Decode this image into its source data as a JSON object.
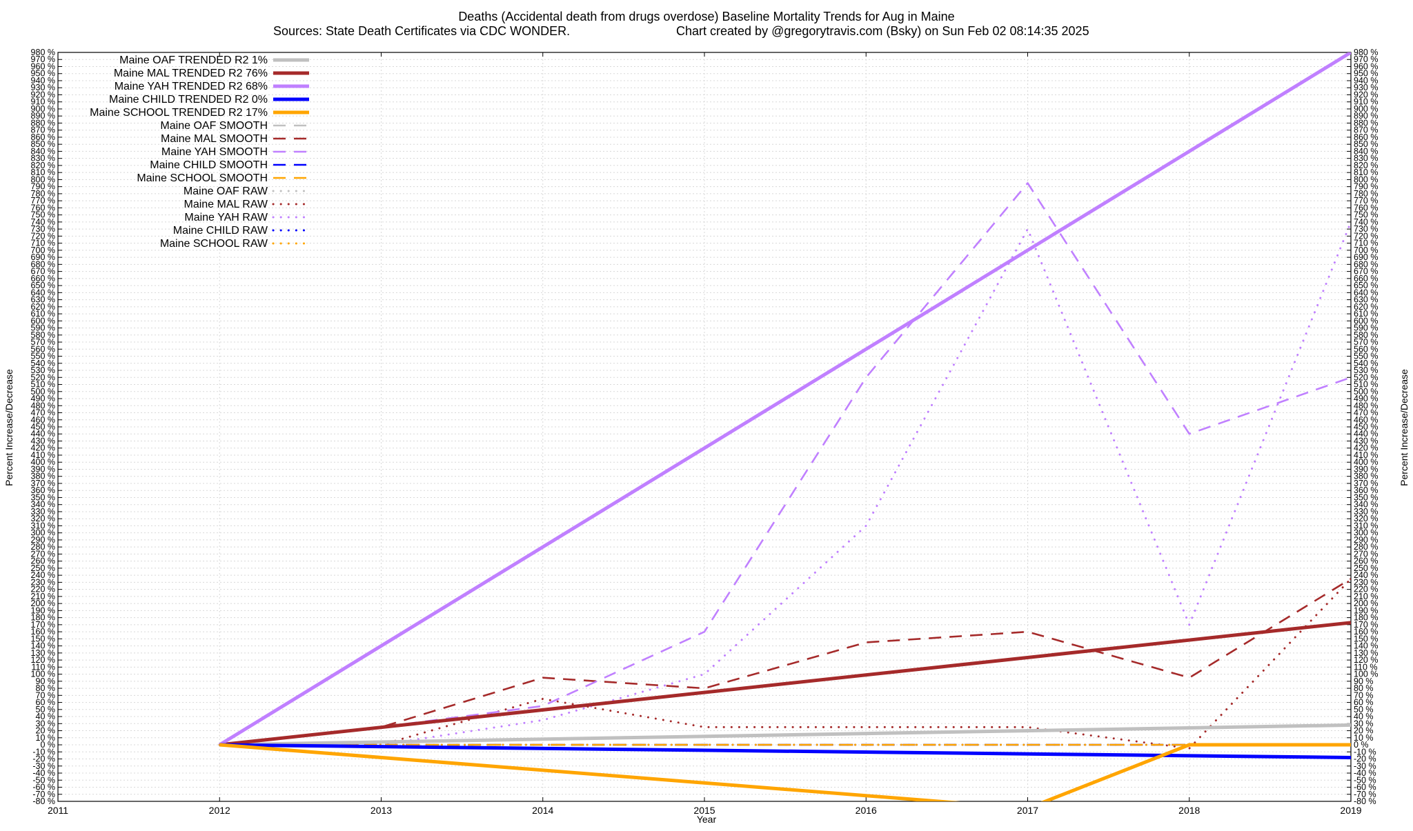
{
  "chart_data": {
    "type": "line",
    "title": "Deaths (Accidental death from drugs overdose)  Baseline Mortality Trends for Aug in Maine",
    "subtitle_left": "Sources: State Death Certificates via CDC WONDER.",
    "subtitle_right": "Chart created by @gregorytravis.com (Bsky) on Sun Feb 02 08:14:35 2025",
    "xlabel": "Year",
    "ylabel_left": "Percent Increase/Decrease",
    "ylabel_right": "Percent Increase/Decrease",
    "xlim": [
      2011,
      2019
    ],
    "ylim": [
      -80,
      980
    ],
    "x_ticks": [
      "2011",
      "2012",
      "2013",
      "2014",
      "2015",
      "2016",
      "2017",
      "2018",
      "2019"
    ],
    "y_tick_step": 10,
    "y_tick_suffix": " %",
    "grid": true,
    "legend_position": "top-left",
    "series": [
      {
        "name": "Maine OAF TRENDED R2  1%",
        "style": "solid",
        "color": "#c0c0c0",
        "x": [
          2012,
          2019
        ],
        "values": [
          0,
          28
        ]
      },
      {
        "name": "Maine MAL TRENDED R2  76%",
        "style": "solid",
        "color": "#a52a2a",
        "x": [
          2012,
          2019
        ],
        "values": [
          0,
          173
        ]
      },
      {
        "name": "Maine YAH TRENDED R2  68%",
        "style": "solid",
        "color": "#c080ff",
        "x": [
          2012,
          2019
        ],
        "values": [
          0,
          980
        ]
      },
      {
        "name": "Maine CHILD TRENDED R2  0%",
        "style": "solid",
        "color": "#0000ff",
        "x": [
          2012,
          2019
        ],
        "values": [
          0,
          -18
        ]
      },
      {
        "name": "Maine SCHOOL TRENDED R2  17%",
        "style": "solid",
        "color": "#ffa500",
        "x": [
          2012,
          2017,
          2018,
          2019
        ],
        "values": [
          0,
          -90,
          0,
          0
        ]
      },
      {
        "name": "Maine OAF SMOOTH",
        "style": "dashed",
        "color": "#c0c0c0",
        "x": [
          2012,
          2013,
          2014,
          2015,
          2016,
          2017,
          2018,
          2019
        ],
        "values": [
          0,
          0,
          0,
          0,
          0,
          0,
          0,
          0
        ]
      },
      {
        "name": "Maine MAL SMOOTH",
        "style": "dashed",
        "color": "#a52a2a",
        "x": [
          2012,
          2013,
          2014,
          2015,
          2016,
          2017,
          2018,
          2019
        ],
        "values": [
          0,
          25,
          95,
          80,
          145,
          160,
          95,
          235
        ]
      },
      {
        "name": "Maine YAH SMOOTH",
        "style": "dashed",
        "color": "#c080ff",
        "x": [
          2012,
          2013,
          2014,
          2015,
          2016,
          2017,
          2018,
          2019
        ],
        "values": [
          0,
          25,
          55,
          160,
          520,
          795,
          440,
          520
        ]
      },
      {
        "name": "Maine CHILD SMOOTH",
        "style": "dashed",
        "color": "#0000ff",
        "x": [
          2012,
          2019
        ],
        "values": [
          0,
          0
        ]
      },
      {
        "name": "Maine SCHOOL SMOOTH",
        "style": "dashed",
        "color": "#ffa500",
        "x": [
          2012,
          2019
        ],
        "values": [
          0,
          0
        ]
      },
      {
        "name": "Maine OAF RAW",
        "style": "dotted",
        "color": "#c0c0c0",
        "x": [
          2012,
          2013,
          2014,
          2015,
          2016,
          2017,
          2018,
          2019
        ],
        "values": [
          0,
          0,
          0,
          0,
          0,
          0,
          0,
          0
        ]
      },
      {
        "name": "Maine MAL RAW",
        "style": "dotted",
        "color": "#a52a2a",
        "x": [
          2012,
          2013,
          2014,
          2015,
          2016,
          2017,
          2018,
          2019
        ],
        "values": [
          0,
          0,
          65,
          25,
          25,
          25,
          -5,
          235
        ]
      },
      {
        "name": "Maine YAH RAW",
        "style": "dotted",
        "color": "#c080ff",
        "x": [
          2012,
          2013,
          2014,
          2015,
          2016,
          2017,
          2018,
          2019
        ],
        "values": [
          0,
          0,
          35,
          100,
          310,
          730,
          170,
          740
        ]
      },
      {
        "name": "Maine CHILD RAW",
        "style": "dotted",
        "color": "#0000ff",
        "x": [
          2012,
          2019
        ],
        "values": [
          0,
          0
        ]
      },
      {
        "name": "Maine SCHOOL RAW",
        "style": "dotted",
        "color": "#ffa500",
        "x": [
          2012,
          2019
        ],
        "values": [
          0,
          0
        ]
      }
    ]
  }
}
